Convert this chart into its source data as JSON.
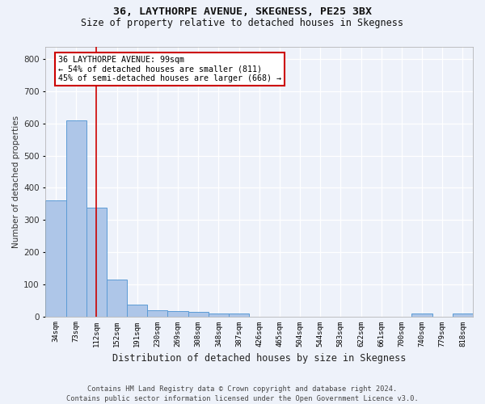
{
  "title1": "36, LAYTHORPE AVENUE, SKEGNESS, PE25 3BX",
  "title2": "Size of property relative to detached houses in Skegness",
  "xlabel": "Distribution of detached houses by size in Skegness",
  "ylabel": "Number of detached properties",
  "footer1": "Contains HM Land Registry data © Crown copyright and database right 2024.",
  "footer2": "Contains public sector information licensed under the Open Government Licence v3.0.",
  "bin_labels": [
    "34sqm",
    "73sqm",
    "112sqm",
    "152sqm",
    "191sqm",
    "230sqm",
    "269sqm",
    "308sqm",
    "348sqm",
    "387sqm",
    "426sqm",
    "465sqm",
    "504sqm",
    "544sqm",
    "583sqm",
    "622sqm",
    "661sqm",
    "700sqm",
    "740sqm",
    "779sqm",
    "818sqm"
  ],
  "bar_values": [
    360,
    611,
    338,
    115,
    36,
    20,
    16,
    14,
    9,
    8,
    0,
    0,
    0,
    0,
    0,
    0,
    0,
    0,
    8,
    0,
    8
  ],
  "bar_color": "#aec6e8",
  "bar_edge_color": "#5b9bd5",
  "subject_bin_index": 2,
  "red_line_color": "#cc0000",
  "annotation_text_line1": "36 LAYTHORPE AVENUE: 99sqm",
  "annotation_text_line2": "← 54% of detached houses are smaller (811)",
  "annotation_text_line3": "45% of semi-detached houses are larger (668) →",
  "annotation_box_facecolor": "#ffffff",
  "annotation_box_edgecolor": "#cc0000",
  "background_color": "#eef2fa",
  "grid_color": "#ffffff",
  "ylim": [
    0,
    840
  ],
  "yticks": [
    0,
    100,
    200,
    300,
    400,
    500,
    600,
    700,
    800
  ]
}
